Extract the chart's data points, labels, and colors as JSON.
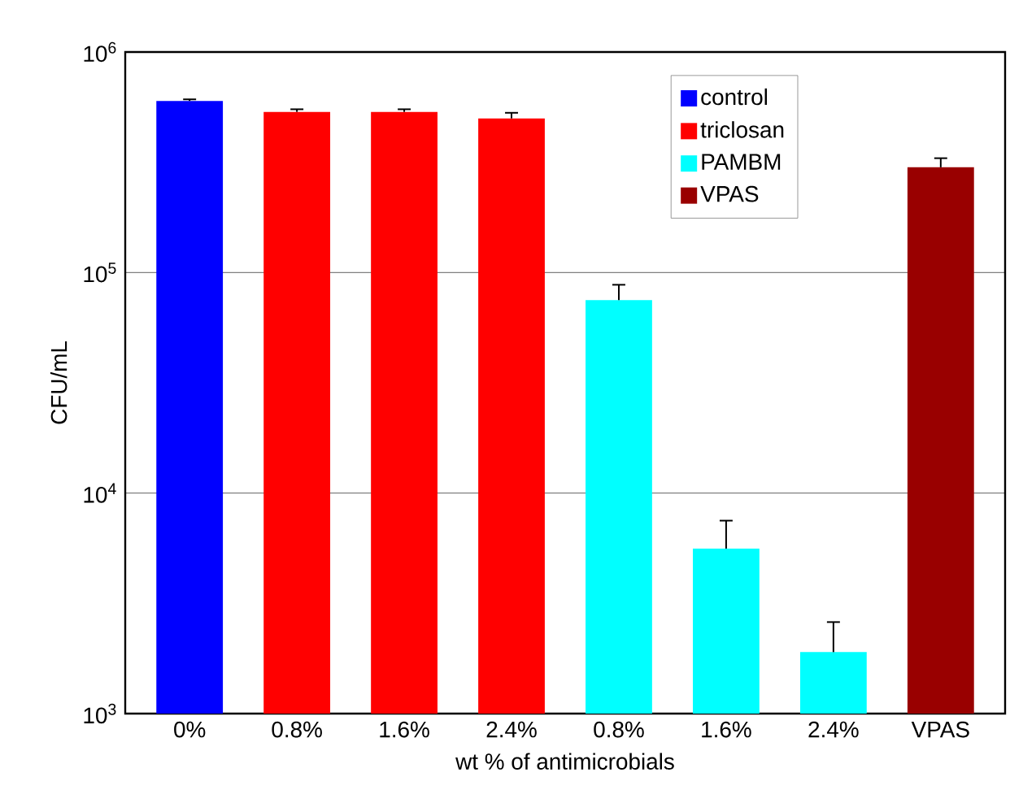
{
  "chart_data": {
    "type": "bar",
    "xlabel": "wt % of antimicrobials",
    "ylabel": "CFU/mL",
    "categories": [
      "0%",
      "0.8%",
      "1.6%",
      "2.4%",
      "0.8%",
      "1.6%",
      "2.4%",
      "VPAS"
    ],
    "series": [
      {
        "name": "control",
        "color": "#0000ff",
        "values": [
          600000,
          null,
          null,
          null,
          null,
          null,
          null,
          null
        ],
        "errors": [
          10000,
          null,
          null,
          null,
          null,
          null,
          null,
          null
        ]
      },
      {
        "name": "triclosan",
        "color": "#ff0000",
        "values": [
          null,
          535000,
          535000,
          500000,
          null,
          null,
          null,
          null
        ],
        "errors": [
          null,
          15000,
          15000,
          30000,
          null,
          null,
          null,
          null
        ]
      },
      {
        "name": "PAMBM",
        "color": "#00ffff",
        "values": [
          null,
          null,
          null,
          null,
          75000,
          5600,
          1900,
          null
        ],
        "errors": [
          null,
          null,
          null,
          null,
          13000,
          1900,
          700,
          null
        ]
      },
      {
        "name": "VPAS",
        "color": "#990000",
        "values": [
          null,
          null,
          null,
          null,
          null,
          null,
          null,
          300000
        ],
        "errors": [
          null,
          null,
          null,
          null,
          null,
          null,
          null,
          30000
        ]
      }
    ],
    "log": true,
    "ylim": [
      1000,
      1000000
    ],
    "yticks": [
      {
        "value": 1000,
        "label": "10$^{3}$"
      },
      {
        "value": 10000,
        "label": "10$^{4}$"
      },
      {
        "value": 100000,
        "label": "10$^{5}$"
      },
      {
        "value": 1000000,
        "label": "10$^{6}$"
      }
    ],
    "grid": "y",
    "legend": "top right"
  }
}
